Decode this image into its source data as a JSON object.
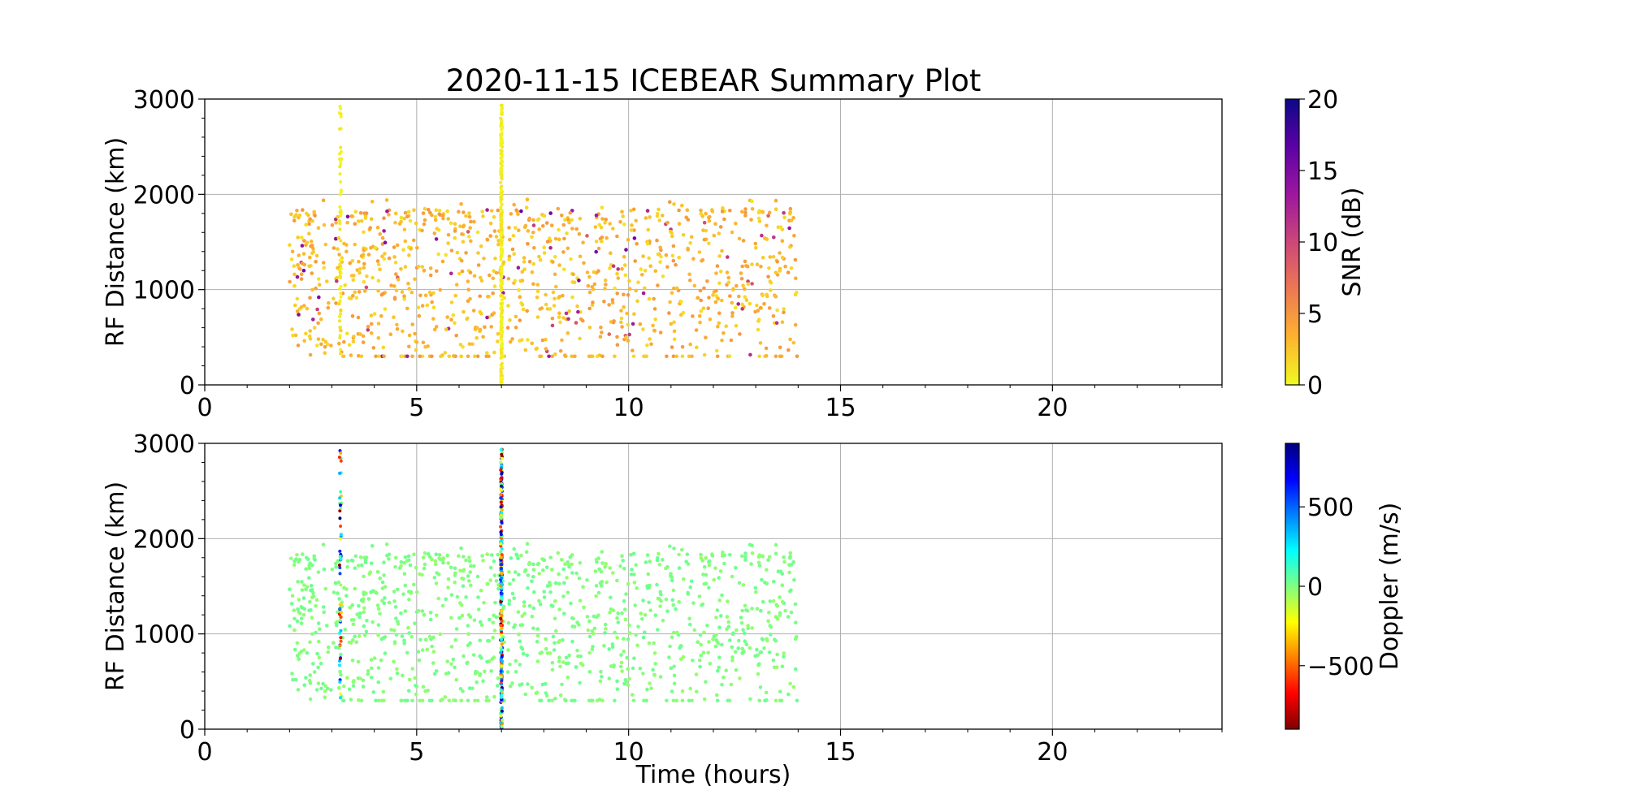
{
  "figure": {
    "title": "2020-11-15 ICEBEAR Summary Plot",
    "shared_xlabel": "Time (hours)"
  },
  "chart_data": [
    {
      "type": "scatter",
      "name": "snr_panel",
      "xlabel": "",
      "ylabel": "RF Distance (km)",
      "xlim": [
        0,
        24
      ],
      "ylim": [
        0,
        3000
      ],
      "xticks": [
        "0",
        "5",
        "10",
        "15",
        "20"
      ],
      "yticks": [
        "0",
        "1000",
        "2000",
        "3000"
      ],
      "grid": true,
      "color_by": "SNR",
      "colorbar": {
        "label": "SNR (dB)",
        "range": [
          0,
          20
        ],
        "ticks": [
          "0",
          "5",
          "10",
          "15",
          "20"
        ],
        "colormap": "plasma_r",
        "colors": [
          "#f0f921",
          "#fdb32f",
          "#ed7953",
          "#cc4778",
          "#9c179e",
          "#5c01a6",
          "#0d0887"
        ]
      },
      "data_description": "Scattered echoes between ~2 and ~14 hours at 0-2000 km range, dense vertical streaks near 3.2 h and 7.0 h up to ~2950 km; mostly low SNR (~1-6 dB)",
      "x_extent": [
        2.0,
        14.0
      ],
      "range_extent": [
        0,
        2000
      ],
      "streaks": [
        {
          "x": 3.2,
          "ymin": 130,
          "ymax": 2930
        },
        {
          "x": 7.0,
          "ymin": 0,
          "ymax": 2950
        }
      ]
    },
    {
      "type": "scatter",
      "name": "doppler_panel",
      "xlabel": "Time (hours)",
      "ylabel": "RF Distance (km)",
      "xlim": [
        0,
        24
      ],
      "ylim": [
        0,
        3000
      ],
      "xticks": [
        "0",
        "5",
        "10",
        "15",
        "20"
      ],
      "yticks": [
        "0",
        "1000",
        "2000",
        "3000"
      ],
      "grid": true,
      "color_by": "Doppler",
      "colorbar": {
        "label": "Doppler (m/s)",
        "range": [
          -900,
          900
        ],
        "ticks": [
          "−500",
          "0",
          "500"
        ],
        "tick_values": [
          -500,
          0,
          500
        ],
        "colormap": "jet_r",
        "colors": [
          "#7f0000",
          "#ff0000",
          "#ff8000",
          "#ffff00",
          "#80ff80",
          "#00ffff",
          "#0080ff",
          "#0000ff",
          "#00007f"
        ]
      },
      "data_description": "Same echo distribution; scattered points near 0 m/s (light green), streaks at 3.2 h and 7.0 h with mixed Doppler from -900 to +900 m/s",
      "x_extent": [
        2.0,
        14.0
      ],
      "range_extent": [
        0,
        2000
      ],
      "streaks": [
        {
          "x": 3.2,
          "ymin": 130,
          "ymax": 2930
        },
        {
          "x": 7.0,
          "ymin": 0,
          "ymax": 2950
        }
      ]
    }
  ]
}
